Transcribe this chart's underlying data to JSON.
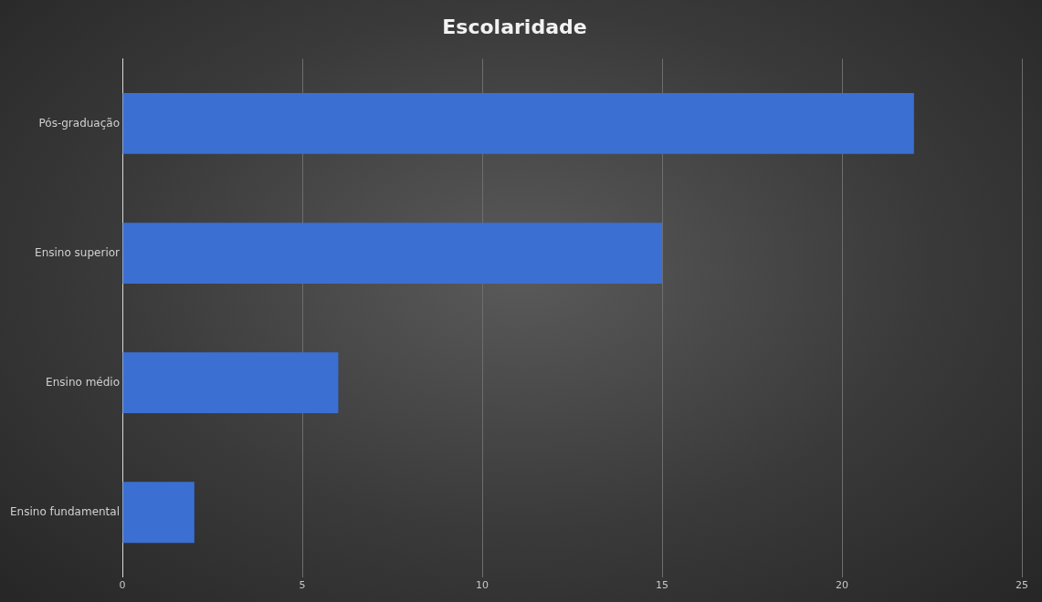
{
  "chart_data": {
    "type": "bar",
    "title": "Escolaridade",
    "orientation": "horizontal",
    "categories": [
      "Pós-graduação",
      "Ensino superior",
      "Ensino médio",
      "Ensino fundamental"
    ],
    "values": [
      22,
      15,
      6,
      2
    ],
    "color": "#3b6fd2",
    "xlim": [
      0,
      25
    ],
    "xticks": [
      0,
      5,
      10,
      15,
      20,
      25
    ],
    "grid": "x"
  }
}
